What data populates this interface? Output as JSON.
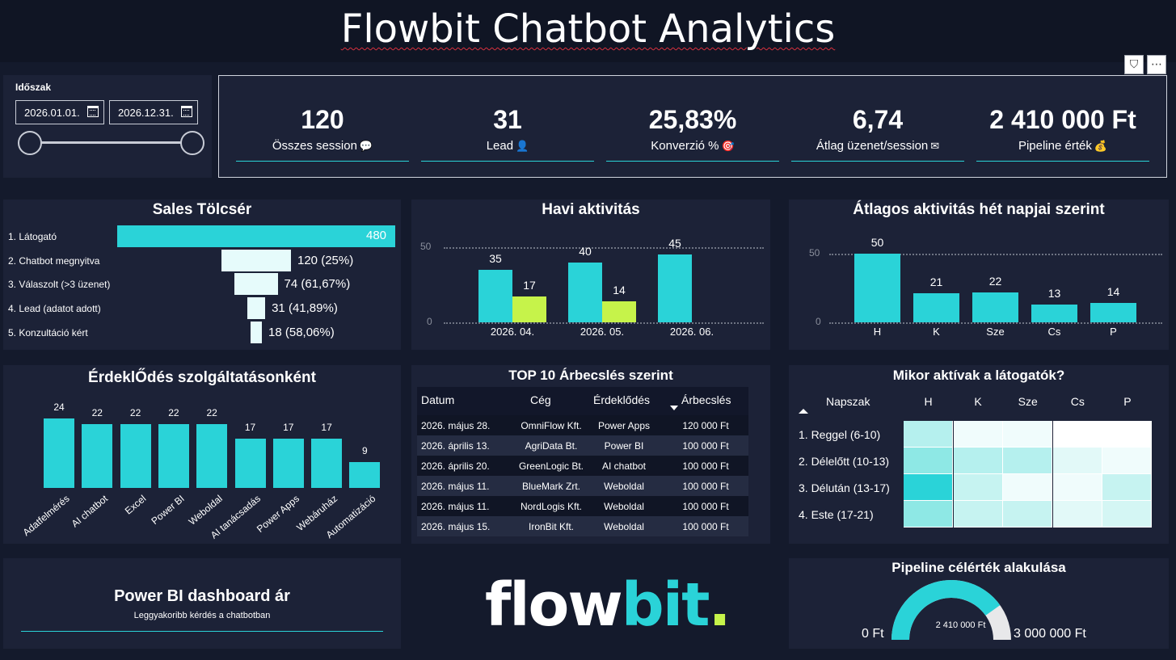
{
  "header": {
    "title": "Flowbit Chatbot Analytics"
  },
  "period": {
    "label": "Időszak",
    "start": "2026.01.01.",
    "end": "2026.12.31."
  },
  "kpis": [
    {
      "value": "120",
      "label": "Összes session",
      "icon": "speech-bubble-icon",
      "emoji": "💬"
    },
    {
      "value": "31",
      "label": "Lead",
      "icon": "person-icon",
      "emoji": "👤"
    },
    {
      "value": "25,83%",
      "label": "Konverzió %",
      "icon": "target-icon",
      "emoji": "🎯"
    },
    {
      "value": "6,74",
      "label": "Átlag üzenet/session",
      "icon": "envelope-icon",
      "emoji": "✉"
    },
    {
      "value": "2 410 000 Ft",
      "label": "Pipeline érték",
      "icon": "money-bag-icon",
      "emoji": "💰"
    }
  ],
  "funnel": {
    "title": "Sales Tölcsér",
    "stages": [
      {
        "label": "1. Látogató",
        "value": 480,
        "text": "480"
      },
      {
        "label": "2. Chatbot megnyitva",
        "value": 120,
        "text": "120 (25%)"
      },
      {
        "label": "3. Válaszolt (>3 üzenet)",
        "value": 74,
        "text": "74 (61,67%)"
      },
      {
        "label": "4. Lead (adatot adott)",
        "value": 31,
        "text": "31 (41,89%)"
      },
      {
        "label": "5. Konzultáció kért",
        "value": 18,
        "text": "18 (58,06%)"
      }
    ]
  },
  "monthly": {
    "title": "Havi aktivitás",
    "yticks": [
      "50",
      "0"
    ],
    "chart_data": {
      "type": "bar",
      "categories": [
        "2026. 04.",
        "2026. 05.",
        "2026. 06."
      ],
      "series": [
        {
          "values": [
            35,
            40,
            45
          ]
        },
        {
          "values": [
            17,
            14,
            null
          ]
        }
      ],
      "ylim": [
        0,
        50
      ]
    }
  },
  "weekday": {
    "title": "Átlagos aktivitás hét napjai szerint",
    "yticks": [
      "50",
      "0"
    ],
    "chart_data": {
      "type": "bar",
      "categories": [
        "H",
        "K",
        "Sze",
        "Cs",
        "P"
      ],
      "values": [
        50,
        21,
        22,
        13,
        14
      ],
      "ylim": [
        0,
        50
      ]
    }
  },
  "services": {
    "title": "ÉrdeklŐdés szolgáltatásonként",
    "chart_data": {
      "type": "bar",
      "categories": [
        "Adatfelmérés",
        "AI chatbot",
        "Excel",
        "Power BI",
        "Weboldal",
        "AI tanácsadás",
        "Power Apps",
        "Webáruház",
        "Automatizáció"
      ],
      "values": [
        24,
        22,
        22,
        22,
        22,
        17,
        17,
        17,
        9
      ]
    }
  },
  "top10": {
    "title": "TOP 10 Árbecslés szerint",
    "columns": [
      "Datum",
      "Cég",
      "Érdeklődés",
      "Árbecslés"
    ],
    "rows": [
      [
        "2026. május 28.",
        "OmniFlow Kft.",
        "Power Apps",
        "120 000 Ft"
      ],
      [
        "2026. április 13.",
        "AgriData Bt.",
        "Power BI",
        "100 000 Ft"
      ],
      [
        "2026. április 20.",
        "GreenLogic Bt.",
        "AI chatbot",
        "100 000 Ft"
      ],
      [
        "2026. május 11.",
        "BlueMark Zrt.",
        "Weboldal",
        "100 000 Ft"
      ],
      [
        "2026. május 11.",
        "NordLogis Kft.",
        "Weboldal",
        "100 000 Ft"
      ],
      [
        "2026. május 15.",
        "IronBit Kft.",
        "Weboldal",
        "100 000 Ft"
      ]
    ]
  },
  "heatmap": {
    "title": "Mikor aktívak a látogatók?",
    "corner": "Napszak",
    "columns": [
      "H",
      "K",
      "Sze",
      "Cs",
      "P"
    ],
    "rows": [
      "1. Reggel (6-10)",
      "2. Délelőtt (10-13)",
      "3. Délután (13-17)",
      "4. Este (17-21)"
    ],
    "colors": [
      [
        "#b5f0ee",
        "#f0fcfc",
        "#f0fcfc",
        "#ffffff",
        "#ffffff"
      ],
      [
        "#8ee8e5",
        "#b5f0ee",
        "#b5f0ee",
        "#e2f9f8",
        "#f0fcfc"
      ],
      [
        "#2ad3d8",
        "#c6f3f1",
        "#f0fcfc",
        "#f0fcfc",
        "#c6f3f1"
      ],
      [
        "#8ee8e5",
        "#c6f3f1",
        "#c6f3f1",
        "#e2f9f8",
        "#d4f6f4"
      ]
    ]
  },
  "faq": {
    "title": "Power BI dashboard ár",
    "subtitle": "Leggyakoribb kérdés a chatbotban"
  },
  "logo": {
    "part1": "flow",
    "part2": "bit",
    "part3": "."
  },
  "gauge": {
    "title": "Pipeline célérték alakulása",
    "min_label": "0 Ft",
    "max_label": "3 000 000 Ft",
    "value_label": "2 410 000 Ft",
    "chart_data": {
      "type": "gauge",
      "value": 2410000,
      "min": 0,
      "max": 3000000
    }
  },
  "colors": {
    "accent": "#2ad3d8",
    "accent2": "#c6f34a",
    "panel": "#1c2237",
    "bg": "#141a2c"
  }
}
